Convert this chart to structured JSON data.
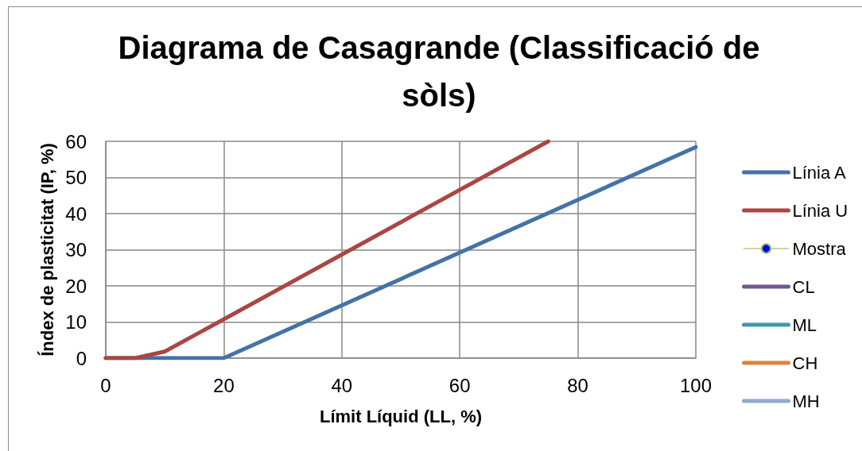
{
  "chart_data": {
    "type": "line",
    "title": "Diagrama de Casagrande (Classificació de sòls)",
    "xlabel": "Límit Líquid (LL, %)",
    "ylabel": "Índex de plasticitat (IP, %)",
    "xlim": [
      0,
      100
    ],
    "xticks": [
      0,
      20,
      40,
      60,
      80,
      100
    ],
    "ylim": [
      0,
      60
    ],
    "yticks": [
      0,
      10,
      20,
      30,
      40,
      50,
      60
    ],
    "grid": true,
    "legend": "right",
    "marker": "none",
    "series": [
      {
        "name": "Línia A",
        "color": "#4572a7",
        "x": [
          0,
          20,
          100
        ],
        "values": [
          0,
          0,
          58.4
        ]
      },
      {
        "name": "Línia U",
        "color": "#aa4643",
        "x": [
          0,
          5,
          10,
          75
        ],
        "values": [
          0,
          0,
          1.8,
          60
        ]
      },
      {
        "name": "Mostra",
        "color": "#0000ff",
        "marker": "circle"
      },
      {
        "name": "CL",
        "color": "#71588f"
      },
      {
        "name": "ML",
        "color": "#4198af"
      },
      {
        "name": "CH",
        "color": "#db843d"
      },
      {
        "name": "MH",
        "color": "#93a9cf"
      }
    ]
  }
}
